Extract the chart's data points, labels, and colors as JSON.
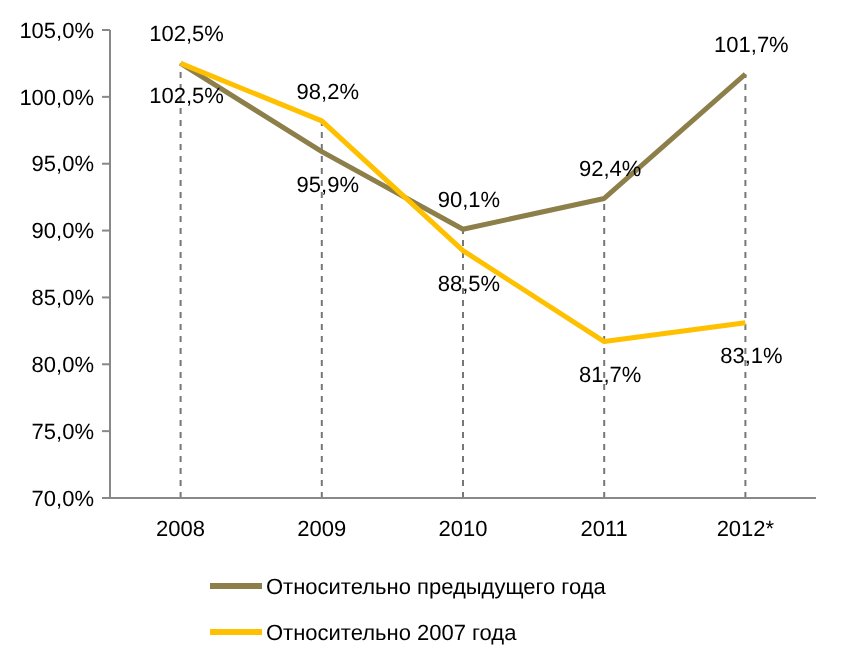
{
  "chart_data": {
    "type": "line",
    "categories": [
      "2008",
      "2009",
      "2010",
      "2011",
      "2012*"
    ],
    "series": [
      {
        "name": "Относительно предыдущего года",
        "color": "#8c7f4a",
        "values": [
          102.5,
          95.9,
          90.1,
          92.4,
          101.7
        ],
        "value_labels": [
          "102,5%",
          "95,9%",
          "90,1%",
          "92,4%",
          "101,7%"
        ]
      },
      {
        "name": "Относительно 2007 года",
        "color": "#ffc000",
        "values": [
          102.5,
          98.2,
          88.5,
          81.7,
          83.1
        ],
        "value_labels": [
          "102,5%",
          "98,2%",
          "88,5%",
          "81,7%",
          "83,1%"
        ]
      }
    ],
    "ylim": [
      70,
      105
    ],
    "yticks": [
      {
        "value": 70,
        "label": "70,0%"
      },
      {
        "value": 75,
        "label": "75,0%"
      },
      {
        "value": 80,
        "label": "80,0%"
      },
      {
        "value": 85,
        "label": "85,0%"
      },
      {
        "value": 90,
        "label": "90,0%"
      },
      {
        "value": 95,
        "label": "95,0%"
      },
      {
        "value": 100,
        "label": "100,0%"
      },
      {
        "value": 105,
        "label": "105,0%"
      }
    ],
    "grid": "x",
    "legend": "bottom",
    "marker": "none",
    "line_style": "solid"
  }
}
